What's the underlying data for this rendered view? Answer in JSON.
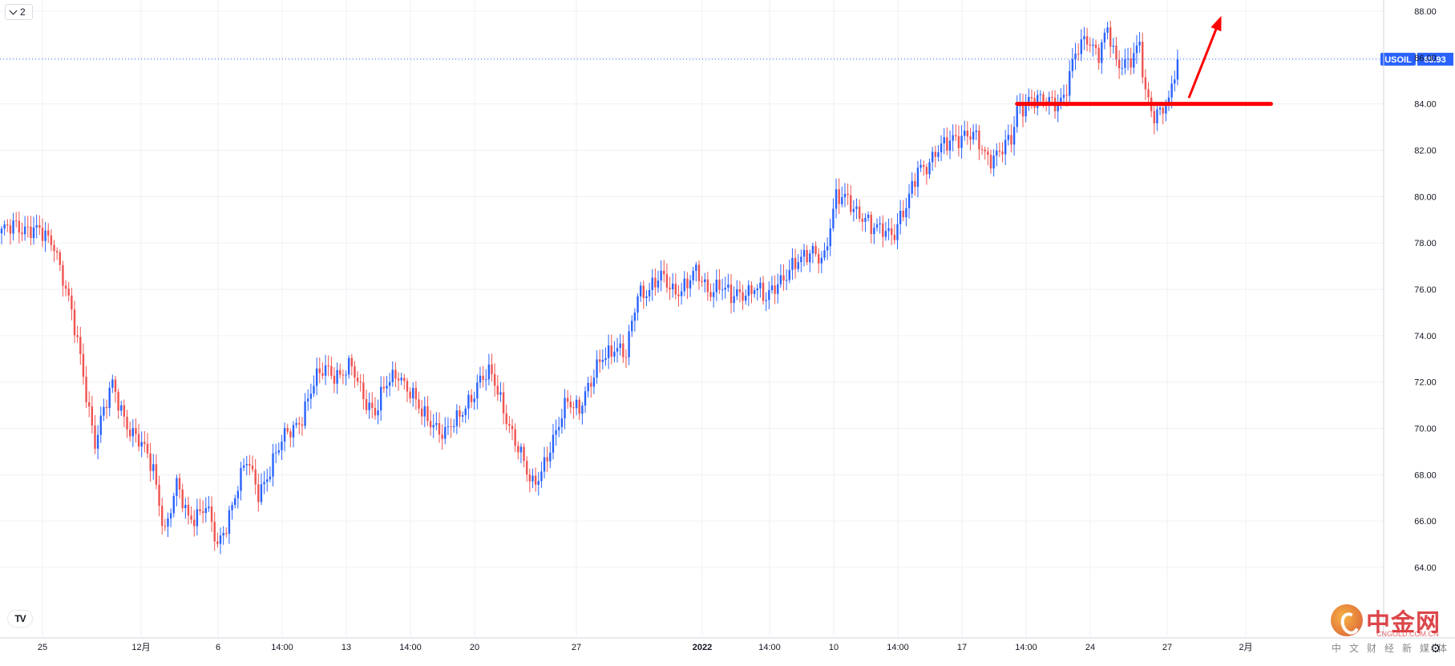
{
  "legend": {
    "interval_label": "2"
  },
  "symbol": {
    "name": "USOIL",
    "last_price": "85.93",
    "color": "#2962ff"
  },
  "colors": {
    "up": "#2962ff",
    "down": "#ef5350",
    "annotation": "#ff0000",
    "grid": "#eef0f4",
    "axis_text": "#131722"
  },
  "watermark": {
    "brand": "中金网",
    "site": "CNGOLD.COM.CN",
    "tagline": "中文财经新媒体"
  },
  "chart_data": {
    "type": "candlestick",
    "title": "",
    "xlabel": "",
    "ylabel": "",
    "ylim": [
      62.0,
      88.4
    ],
    "grid": true,
    "y_ticks": [
      "88.00",
      "86.00",
      "84.00",
      "82.00",
      "80.00",
      "78.00",
      "76.00",
      "74.00",
      "72.00",
      "70.00",
      "68.00",
      "66.00",
      "64.00"
    ],
    "x_ticks": [
      "25",
      "12月",
      "6",
      "14:00",
      "13",
      "14:00",
      "20",
      "27",
      "2022",
      "14:00",
      "10",
      "14:00",
      "17",
      "14:00",
      "24",
      "27",
      "2月"
    ],
    "last_price_line": 85.93,
    "anchors": [
      [
        0,
        78.3
      ],
      [
        5,
        78.9
      ],
      [
        12,
        78.4
      ],
      [
        18,
        78.1
      ],
      [
        22,
        76.0
      ],
      [
        27,
        73.0
      ],
      [
        32,
        69.5
      ],
      [
        38,
        71.8
      ],
      [
        44,
        70.0
      ],
      [
        52,
        68.3
      ],
      [
        56,
        65.6
      ],
      [
        60,
        67.4
      ],
      [
        64,
        66.2
      ],
      [
        70,
        66.6
      ],
      [
        74,
        64.8
      ],
      [
        80,
        67.2
      ],
      [
        84,
        68.5
      ],
      [
        88,
        67.3
      ],
      [
        94,
        68.8
      ],
      [
        98,
        69.8
      ],
      [
        103,
        70.6
      ],
      [
        107,
        71.8
      ],
      [
        111,
        72.7
      ],
      [
        116,
        72.3
      ],
      [
        120,
        72.5
      ],
      [
        124,
        71.5
      ],
      [
        128,
        70.7
      ],
      [
        132,
        71.8
      ],
      [
        136,
        72.5
      ],
      [
        140,
        71.6
      ],
      [
        144,
        70.5
      ],
      [
        148,
        70.3
      ],
      [
        152,
        69.8
      ],
      [
        156,
        70.2
      ],
      [
        160,
        71.3
      ],
      [
        164,
        72.1
      ],
      [
        168,
        72.2
      ],
      [
        172,
        71.0
      ],
      [
        176,
        69.4
      ],
      [
        180,
        68.0
      ],
      [
        182,
        67.6
      ],
      [
        186,
        68.6
      ],
      [
        190,
        69.6
      ],
      [
        194,
        71.3
      ],
      [
        198,
        71.0
      ],
      [
        202,
        71.8
      ],
      [
        206,
        73.2
      ],
      [
        210,
        73.6
      ],
      [
        214,
        73.0
      ],
      [
        218,
        75.9
      ],
      [
        222,
        76.1
      ],
      [
        226,
        76.4
      ],
      [
        230,
        76.0
      ],
      [
        234,
        76.2
      ],
      [
        238,
        76.6
      ],
      [
        242,
        76.0
      ],
      [
        246,
        76.3
      ],
      [
        250,
        75.5
      ],
      [
        254,
        75.9
      ],
      [
        258,
        76.2
      ],
      [
        262,
        75.4
      ],
      [
        266,
        76.4
      ],
      [
        270,
        76.9
      ],
      [
        274,
        77.1
      ],
      [
        278,
        77.8
      ],
      [
        282,
        77.4
      ],
      [
        286,
        79.8
      ],
      [
        290,
        80.1
      ],
      [
        294,
        79.2
      ],
      [
        298,
        78.5
      ],
      [
        302,
        78.8
      ],
      [
        306,
        78.4
      ],
      [
        310,
        79.4
      ],
      [
        314,
        81.4
      ],
      [
        318,
        81.4
      ],
      [
        322,
        82.0
      ],
      [
        326,
        82.7
      ],
      [
        330,
        82.6
      ],
      [
        334,
        82.4
      ],
      [
        338,
        81.8
      ],
      [
        342,
        81.9
      ],
      [
        346,
        82.3
      ],
      [
        348,
        83.8
      ],
      [
        352,
        84.3
      ],
      [
        356,
        84.0
      ],
      [
        360,
        84.1
      ],
      [
        364,
        84.4
      ],
      [
        368,
        86.0
      ],
      [
        372,
        86.9
      ],
      [
        376,
        86.3
      ],
      [
        379,
        87.1
      ],
      [
        382,
        85.6
      ],
      [
        386,
        86.0
      ],
      [
        390,
        86.5
      ],
      [
        392,
        84.2
      ],
      [
        395,
        83.4
      ],
      [
        398,
        84.1
      ],
      [
        400,
        84.2
      ],
      [
        403,
        85.9
      ]
    ],
    "annotations": [
      {
        "type": "horizontal_line",
        "price": 84.0,
        "from_index": 348,
        "to_index": 435,
        "color": "#ff0000"
      },
      {
        "type": "arrow",
        "from": [
          407,
          84.3
        ],
        "to": [
          418,
          87.8
        ],
        "color": "#ff0000"
      }
    ]
  }
}
